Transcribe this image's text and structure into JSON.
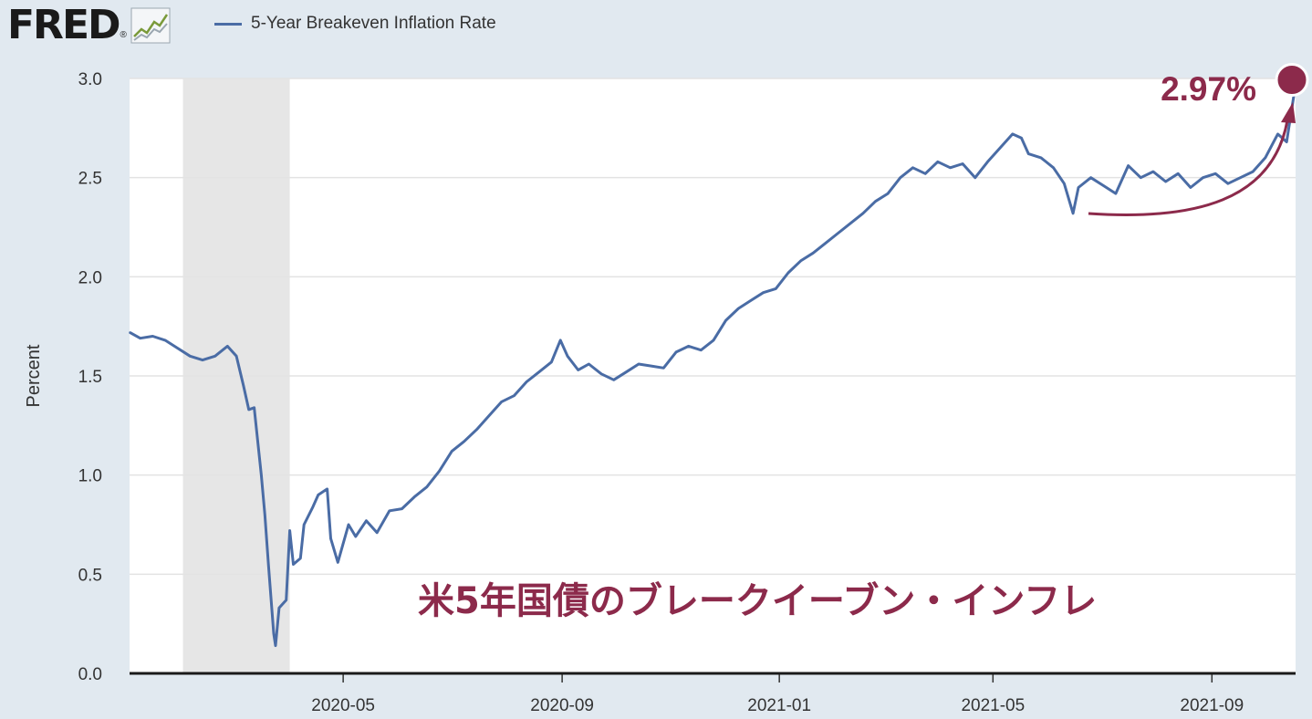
{
  "header": {
    "logo": "FRED",
    "logo_mark": "®",
    "logo_icon": "chart-line-icon"
  },
  "legend": {
    "label": "5-Year Breakeven Inflation Rate",
    "color": "#4a6ca5"
  },
  "colors": {
    "series": "#4a6ca5",
    "recession": "#e6e6e6",
    "annotation": "#8c2a4b",
    "plot_bg": "#ffffff",
    "page_bg": "#e1e9f0"
  },
  "annotation": {
    "value_label": "2.97%",
    "caption": "米5年国債のブレークイーブン・インフレ"
  },
  "chart_data": {
    "type": "line",
    "title": "",
    "xlabel": "",
    "ylabel": "Percent",
    "ylim": [
      0,
      3
    ],
    "yticks": [
      "0.0",
      "0.5",
      "1.0",
      "1.5",
      "2.0",
      "2.5",
      "3.0"
    ],
    "xlim": [
      "2020-01-02",
      "2021-10-18"
    ],
    "xticks": [
      "2020-05",
      "2020-09",
      "2021-01",
      "2021-05",
      "2021-09"
    ],
    "grid": "horizontal",
    "recession": [
      "2020-02",
      "2020-04"
    ],
    "series": [
      {
        "name": "5-Year Breakeven Inflation Rate",
        "points": [
          [
            "2020-01-02",
            1.72
          ],
          [
            "2020-01-08",
            1.69
          ],
          [
            "2020-01-15",
            1.7
          ],
          [
            "2020-01-22",
            1.68
          ],
          [
            "2020-01-29",
            1.64
          ],
          [
            "2020-02-05",
            1.6
          ],
          [
            "2020-02-12",
            1.58
          ],
          [
            "2020-02-19",
            1.6
          ],
          [
            "2020-02-26",
            1.65
          ],
          [
            "2020-03-02",
            1.6
          ],
          [
            "2020-03-06",
            1.45
          ],
          [
            "2020-03-09",
            1.33
          ],
          [
            "2020-03-12",
            1.34
          ],
          [
            "2020-03-16",
            1.0
          ],
          [
            "2020-03-18",
            0.8
          ],
          [
            "2020-03-20",
            0.55
          ],
          [
            "2020-03-23",
            0.2
          ],
          [
            "2020-03-24",
            0.14
          ],
          [
            "2020-03-26",
            0.33
          ],
          [
            "2020-03-30",
            0.37
          ],
          [
            "2020-04-01",
            0.72
          ],
          [
            "2020-04-03",
            0.55
          ],
          [
            "2020-04-07",
            0.58
          ],
          [
            "2020-04-09",
            0.75
          ],
          [
            "2020-04-14",
            0.84
          ],
          [
            "2020-04-17",
            0.9
          ],
          [
            "2020-04-22",
            0.93
          ],
          [
            "2020-04-24",
            0.68
          ],
          [
            "2020-04-28",
            0.56
          ],
          [
            "2020-05-04",
            0.75
          ],
          [
            "2020-05-08",
            0.69
          ],
          [
            "2020-05-14",
            0.77
          ],
          [
            "2020-05-20",
            0.71
          ],
          [
            "2020-05-27",
            0.82
          ],
          [
            "2020-06-03",
            0.83
          ],
          [
            "2020-06-10",
            0.89
          ],
          [
            "2020-06-17",
            0.94
          ],
          [
            "2020-06-24",
            1.02
          ],
          [
            "2020-07-01",
            1.12
          ],
          [
            "2020-07-08",
            1.17
          ],
          [
            "2020-07-15",
            1.23
          ],
          [
            "2020-07-22",
            1.3
          ],
          [
            "2020-07-29",
            1.37
          ],
          [
            "2020-08-05",
            1.4
          ],
          [
            "2020-08-12",
            1.47
          ],
          [
            "2020-08-19",
            1.52
          ],
          [
            "2020-08-26",
            1.57
          ],
          [
            "2020-08-31",
            1.68
          ],
          [
            "2020-09-04",
            1.6
          ],
          [
            "2020-09-10",
            1.53
          ],
          [
            "2020-09-16",
            1.56
          ],
          [
            "2020-09-23",
            1.51
          ],
          [
            "2020-09-30",
            1.48
          ],
          [
            "2020-10-07",
            1.52
          ],
          [
            "2020-10-14",
            1.56
          ],
          [
            "2020-10-21",
            1.55
          ],
          [
            "2020-10-28",
            1.54
          ],
          [
            "2020-11-04",
            1.62
          ],
          [
            "2020-11-11",
            1.65
          ],
          [
            "2020-11-18",
            1.63
          ],
          [
            "2020-11-25",
            1.68
          ],
          [
            "2020-12-02",
            1.78
          ],
          [
            "2020-12-09",
            1.84
          ],
          [
            "2020-12-16",
            1.88
          ],
          [
            "2020-12-23",
            1.92
          ],
          [
            "2020-12-30",
            1.94
          ],
          [
            "2021-01-06",
            2.02
          ],
          [
            "2021-01-13",
            2.08
          ],
          [
            "2021-01-20",
            2.12
          ],
          [
            "2021-01-27",
            2.17
          ],
          [
            "2021-02-03",
            2.22
          ],
          [
            "2021-02-10",
            2.27
          ],
          [
            "2021-02-17",
            2.32
          ],
          [
            "2021-02-24",
            2.38
          ],
          [
            "2021-03-03",
            2.42
          ],
          [
            "2021-03-10",
            2.5
          ],
          [
            "2021-03-17",
            2.55
          ],
          [
            "2021-03-24",
            2.52
          ],
          [
            "2021-03-31",
            2.58
          ],
          [
            "2021-04-07",
            2.55
          ],
          [
            "2021-04-14",
            2.57
          ],
          [
            "2021-04-21",
            2.5
          ],
          [
            "2021-04-28",
            2.58
          ],
          [
            "2021-05-05",
            2.65
          ],
          [
            "2021-05-12",
            2.72
          ],
          [
            "2021-05-17",
            2.7
          ],
          [
            "2021-05-21",
            2.62
          ],
          [
            "2021-05-28",
            2.6
          ],
          [
            "2021-06-04",
            2.55
          ],
          [
            "2021-06-10",
            2.47
          ],
          [
            "2021-06-15",
            2.32
          ],
          [
            "2021-06-18",
            2.45
          ],
          [
            "2021-06-25",
            2.5
          ],
          [
            "2021-07-02",
            2.46
          ],
          [
            "2021-07-09",
            2.42
          ],
          [
            "2021-07-16",
            2.56
          ],
          [
            "2021-07-23",
            2.5
          ],
          [
            "2021-07-30",
            2.53
          ],
          [
            "2021-08-06",
            2.48
          ],
          [
            "2021-08-13",
            2.52
          ],
          [
            "2021-08-20",
            2.45
          ],
          [
            "2021-08-27",
            2.5
          ],
          [
            "2021-09-03",
            2.52
          ],
          [
            "2021-09-10",
            2.47
          ],
          [
            "2021-09-17",
            2.5
          ],
          [
            "2021-09-24",
            2.53
          ],
          [
            "2021-10-01",
            2.6
          ],
          [
            "2021-10-08",
            2.72
          ],
          [
            "2021-10-13",
            2.68
          ],
          [
            "2021-10-18",
            2.97
          ]
        ]
      }
    ]
  }
}
